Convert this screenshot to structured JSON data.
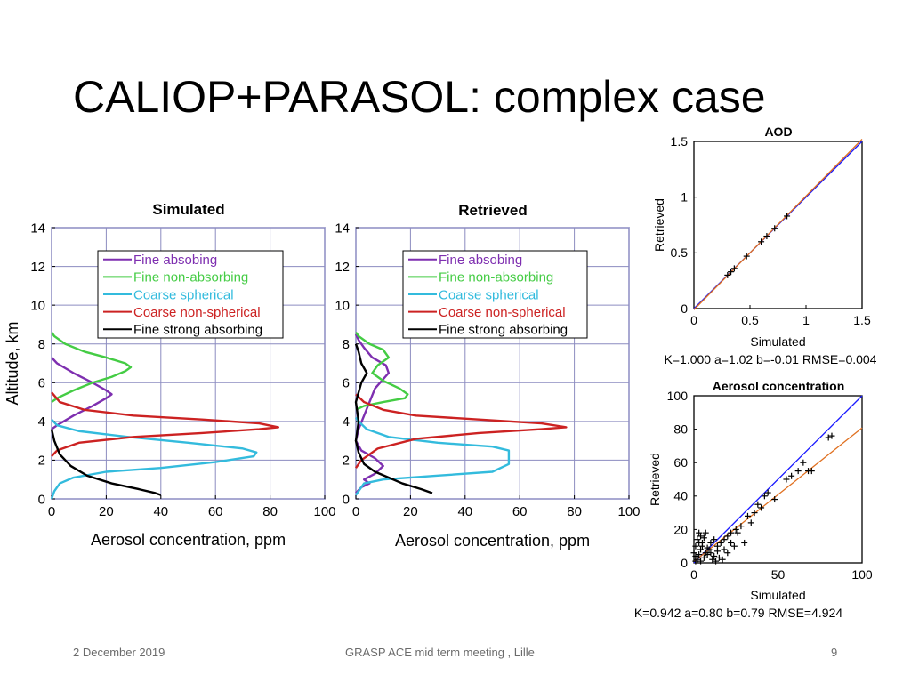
{
  "slide": {
    "title": "CALIOP+PARASOL: complex case",
    "footer_date": "2 December 2019",
    "footer_center": "GRASP ACE mid term meeting , Lille",
    "page_number": "9"
  },
  "colors": {
    "fine_absorbing": "#7e2fb0",
    "fine_non_absorbing": "#44cc44",
    "coarse_spherical": "#33bbdd",
    "coarse_non_spherical": "#cc2222",
    "fine_strong_absorbing": "#000000",
    "one_to_one": "#1a1aff",
    "fit": "#e07020",
    "grid": "#8c8cc0"
  },
  "chart_data": [
    {
      "type": "line",
      "title": "Simulated",
      "xlabel": "Aerosol concentration, ppm",
      "ylabel": "Altitude, km",
      "xlim": [
        0,
        100
      ],
      "ylim": [
        0,
        14
      ],
      "xticks": [
        "0",
        "20",
        "40",
        "60",
        "80",
        "100"
      ],
      "yticks": [
        "0",
        "2",
        "4",
        "6",
        "8",
        "10",
        "12",
        "14"
      ],
      "grid": true,
      "legend_position": "top",
      "series": [
        {
          "name": "Fine absobing",
          "color_key": "fine_absorbing",
          "points": [
            [
              0,
              3.6
            ],
            [
              2,
              3.8
            ],
            [
              8,
              4.3
            ],
            [
              15,
              4.8
            ],
            [
              20,
              5.2
            ],
            [
              22,
              5.4
            ],
            [
              20,
              5.6
            ],
            [
              15,
              6.0
            ],
            [
              8,
              6.5
            ],
            [
              2,
              7.0
            ],
            [
              0,
              7.3
            ]
          ]
        },
        {
          "name": "Fine non-absorbing",
          "color_key": "fine_non_absorbing",
          "points": [
            [
              0,
              5.0
            ],
            [
              2,
              5.2
            ],
            [
              8,
              5.6
            ],
            [
              15,
              6.0
            ],
            [
              22,
              6.3
            ],
            [
              27,
              6.6
            ],
            [
              29,
              6.8
            ],
            [
              27,
              7.0
            ],
            [
              20,
              7.3
            ],
            [
              12,
              7.6
            ],
            [
              5,
              8.0
            ],
            [
              1,
              8.4
            ],
            [
              0,
              8.6
            ]
          ]
        },
        {
          "name": "Coarse spherical",
          "color_key": "coarse_spherical",
          "points": [
            [
              0,
              0.0
            ],
            [
              1,
              0.4
            ],
            [
              3,
              0.8
            ],
            [
              8,
              1.1
            ],
            [
              20,
              1.4
            ],
            [
              40,
              1.6
            ],
            [
              60,
              1.9
            ],
            [
              74,
              2.2
            ],
            [
              75,
              2.4
            ],
            [
              70,
              2.6
            ],
            [
              50,
              2.9
            ],
            [
              28,
              3.2
            ],
            [
              10,
              3.5
            ],
            [
              2,
              3.8
            ],
            [
              0,
              4.1
            ]
          ]
        },
        {
          "name": "Coarse non-spherical",
          "color_key": "coarse_non_spherical",
          "points": [
            [
              0,
              2.2
            ],
            [
              2,
              2.5
            ],
            [
              10,
              2.9
            ],
            [
              30,
              3.2
            ],
            [
              55,
              3.4
            ],
            [
              76,
              3.6
            ],
            [
              83,
              3.7
            ],
            [
              76,
              3.9
            ],
            [
              55,
              4.1
            ],
            [
              30,
              4.3
            ],
            [
              12,
              4.6
            ],
            [
              3,
              5.0
            ],
            [
              0,
              5.5
            ]
          ]
        },
        {
          "name": "Fine strong absorbing",
          "color_key": "fine_strong_absorbing",
          "points": [
            [
              40,
              0.2
            ],
            [
              38,
              0.3
            ],
            [
              32,
              0.5
            ],
            [
              22,
              0.8
            ],
            [
              13,
              1.2
            ],
            [
              7,
              1.7
            ],
            [
              3,
              2.3
            ],
            [
              1,
              3.0
            ],
            [
              0,
              3.6
            ]
          ]
        }
      ]
    },
    {
      "type": "line",
      "title": "Retrieved",
      "xlabel": "Aerosol concentration, ppm",
      "ylabel": "",
      "xlim": [
        0,
        100
      ],
      "ylim": [
        0,
        14
      ],
      "xticks": [
        "0",
        "20",
        "40",
        "60",
        "80",
        "100"
      ],
      "yticks": [
        "0",
        "2",
        "4",
        "6",
        "8",
        "10",
        "12",
        "14"
      ],
      "grid": true,
      "legend_position": "top",
      "series": [
        {
          "name": "Fine absobing",
          "color_key": "fine_absorbing",
          "points": [
            [
              0,
              0.3
            ],
            [
              2,
              0.6
            ],
            [
              5,
              0.8
            ],
            [
              3,
              1.0
            ],
            [
              7,
              1.3
            ],
            [
              10,
              1.7
            ],
            [
              7,
              2.1
            ],
            [
              2,
              2.5
            ],
            [
              0,
              3.0
            ],
            [
              1,
              3.6
            ],
            [
              3,
              4.3
            ],
            [
              5,
              5.0
            ],
            [
              7,
              5.7
            ],
            [
              12,
              6.5
            ],
            [
              11,
              6.9
            ],
            [
              6,
              7.3
            ],
            [
              3,
              7.8
            ],
            [
              1,
              8.2
            ],
            [
              0,
              8.5
            ]
          ]
        },
        {
          "name": "Fine non-absorbing",
          "color_key": "fine_non_absorbing",
          "points": [
            [
              0,
              4.6
            ],
            [
              3,
              4.8
            ],
            [
              10,
              5.0
            ],
            [
              18,
              5.2
            ],
            [
              19,
              5.4
            ],
            [
              16,
              5.7
            ],
            [
              10,
              6.1
            ],
            [
              6,
              6.5
            ],
            [
              8,
              6.9
            ],
            [
              12,
              7.3
            ],
            [
              10,
              7.7
            ],
            [
              5,
              8.0
            ],
            [
              1,
              8.4
            ],
            [
              0,
              8.6
            ]
          ]
        },
        {
          "name": "Coarse spherical",
          "color_key": "coarse_spherical",
          "points": [
            [
              0,
              0.2
            ],
            [
              1,
              0.4
            ],
            [
              3,
              0.8
            ],
            [
              10,
              1.0
            ],
            [
              30,
              1.2
            ],
            [
              50,
              1.4
            ],
            [
              56,
              1.8
            ],
            [
              56,
              2.5
            ],
            [
              50,
              2.7
            ],
            [
              30,
              2.9
            ],
            [
              12,
              3.2
            ],
            [
              4,
              3.6
            ],
            [
              1,
              4.0
            ],
            [
              0,
              4.2
            ]
          ]
        },
        {
          "name": "Coarse non-spherical",
          "color_key": "coarse_non_spherical",
          "points": [
            [
              0,
              1.6
            ],
            [
              2,
              2.0
            ],
            [
              8,
              2.6
            ],
            [
              22,
              3.1
            ],
            [
              45,
              3.4
            ],
            [
              68,
              3.6
            ],
            [
              77,
              3.7
            ],
            [
              68,
              3.9
            ],
            [
              45,
              4.1
            ],
            [
              22,
              4.3
            ],
            [
              10,
              4.6
            ],
            [
              3,
              5.0
            ],
            [
              0,
              5.4
            ]
          ]
        },
        {
          "name": "Fine strong absorbing",
          "color_key": "fine_strong_absorbing",
          "points": [
            [
              28,
              0.3
            ],
            [
              24,
              0.5
            ],
            [
              17,
              0.8
            ],
            [
              12,
              1.1
            ],
            [
              7,
              1.4
            ],
            [
              3,
              1.8
            ],
            [
              1,
              2.4
            ],
            [
              0,
              3.0
            ],
            [
              1,
              4.0
            ],
            [
              0,
              5.0
            ],
            [
              2,
              6.0
            ],
            [
              4,
              6.5
            ],
            [
              2,
              7.0
            ],
            [
              1,
              7.6
            ],
            [
              0,
              8.0
            ]
          ]
        }
      ]
    },
    {
      "type": "scatter",
      "title": "AOD",
      "xlabel": "Simulated",
      "ylabel": "Retrieved",
      "xlim": [
        0,
        1.5
      ],
      "ylim": [
        0,
        1.5
      ],
      "xticks": [
        "0",
        "0.5",
        "1",
        "1.5"
      ],
      "yticks": [
        "0",
        "0.5",
        "1",
        "1.5"
      ],
      "stats": "K=1.000 a=1.02 b=-0.01 RMSE=0.004",
      "fit": {
        "a": 1.02,
        "b": -0.01
      },
      "points": [
        [
          0.3,
          0.3
        ],
        [
          0.33,
          0.33
        ],
        [
          0.36,
          0.36
        ],
        [
          0.47,
          0.47
        ],
        [
          0.6,
          0.6
        ],
        [
          0.65,
          0.65
        ],
        [
          0.72,
          0.72
        ],
        [
          0.83,
          0.83
        ]
      ]
    },
    {
      "type": "scatter",
      "title": "Aerosol concentration",
      "xlabel": "Simulated",
      "ylabel": "Retrieved",
      "xlim": [
        0,
        100
      ],
      "ylim": [
        0,
        100
      ],
      "xticks": [
        "0",
        "50",
        "100"
      ],
      "yticks": [
        "0",
        "20",
        "40",
        "60",
        "80",
        "100"
      ],
      "stats": "K=0.942 a=0.80 b=0.79 RMSE=4.924",
      "fit": {
        "a": 0.8,
        "b": 0.79
      },
      "points": [
        [
          1,
          1
        ],
        [
          2,
          3
        ],
        [
          3,
          5
        ],
        [
          4,
          8
        ],
        [
          5,
          12
        ],
        [
          6,
          15
        ],
        [
          7,
          18
        ],
        [
          8,
          9
        ],
        [
          10,
          12
        ],
        [
          12,
          14
        ],
        [
          14,
          10
        ],
        [
          15,
          3
        ],
        [
          17,
          2
        ],
        [
          18,
          8
        ],
        [
          20,
          6
        ],
        [
          22,
          12
        ],
        [
          24,
          10
        ],
        [
          26,
          18
        ],
        [
          28,
          22
        ],
        [
          30,
          12
        ],
        [
          32,
          28
        ],
        [
          34,
          24
        ],
        [
          36,
          30
        ],
        [
          38,
          35
        ],
        [
          40,
          33
        ],
        [
          42,
          40
        ],
        [
          44,
          42
        ],
        [
          48,
          38
        ],
        [
          55,
          50
        ],
        [
          58,
          52
        ],
        [
          62,
          55
        ],
        [
          65,
          60
        ],
        [
          68,
          55
        ],
        [
          70,
          55
        ],
        [
          80,
          75
        ],
        [
          82,
          76
        ],
        [
          1,
          10
        ],
        [
          2,
          14
        ],
        [
          3,
          18
        ],
        [
          0,
          6
        ],
        [
          1,
          4
        ],
        [
          2,
          2
        ],
        [
          4,
          1
        ],
        [
          6,
          3
        ],
        [
          8,
          5
        ],
        [
          10,
          6
        ],
        [
          12,
          4
        ],
        [
          14,
          7
        ],
        [
          16,
          12
        ],
        [
          18,
          14
        ],
        [
          20,
          16
        ],
        [
          22,
          18
        ],
        [
          25,
          20
        ],
        [
          5,
          10
        ],
        [
          7,
          6
        ],
        [
          9,
          8
        ],
        [
          11,
          2
        ],
        [
          13,
          1
        ],
        [
          3,
          12
        ],
        [
          4,
          16
        ]
      ]
    }
  ]
}
